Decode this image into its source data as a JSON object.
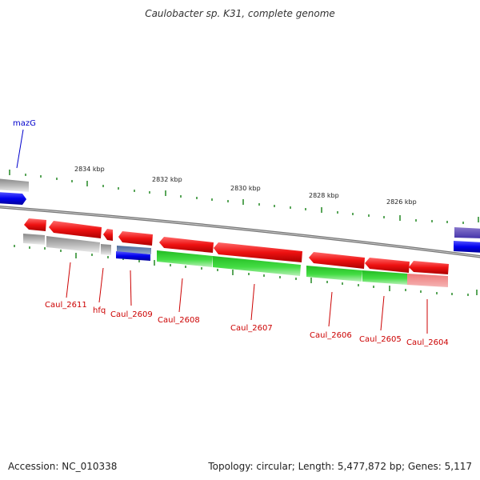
{
  "title": "Caulobacter sp. K31, complete genome",
  "footer": {
    "accession": "Accession: NC_010338",
    "topology": "Topology: circular; Length: 5,477,872 bp; Genes: 5,117"
  },
  "kbp_labels": [
    "2834 kbp",
    "2832 kbp",
    "2830 kbp",
    "2828 kbp",
    "2826 kbp"
  ],
  "gene_labels": {
    "mazG": "mazG",
    "caul2611": "Caul_2611",
    "hfq": "hfq",
    "caul2609": "Caul_2609",
    "caul2608": "Caul_2608",
    "caul2607": "Caul_2607",
    "caul2606": "Caul_2606",
    "caul2605": "Caul_2605",
    "caul2604": "Caul_2604"
  },
  "colors": {
    "red": "#ee1111",
    "green": "#33cc33",
    "blue": "#0000ee",
    "gray": "#aaaaaa",
    "pink": "#ee8080",
    "steel_blue": "#5577aa",
    "purple": "#6655bb",
    "backbone": "#777777",
    "tick": "#228822",
    "label_red": "#cc0000",
    "label_blue": "#0000cc"
  }
}
